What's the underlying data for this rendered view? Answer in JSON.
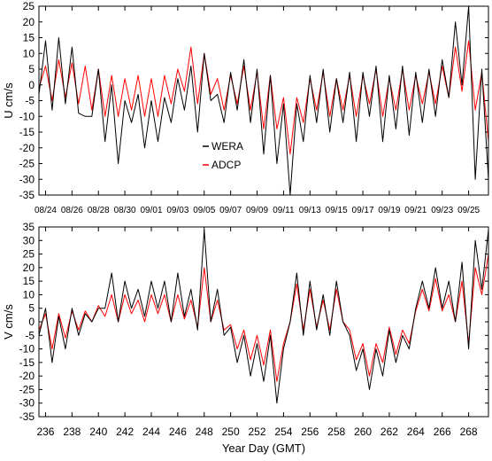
{
  "chart_data": [
    {
      "type": "line",
      "ylabel": "U cm/s",
      "xlim": [
        235.5,
        269.5
      ],
      "ylim": [
        -35,
        25
      ],
      "yticks": [
        25,
        20,
        15,
        10,
        5,
        0,
        -5,
        -10,
        -15,
        -20,
        -25,
        -30,
        -35
      ],
      "xticks": [
        {
          "x": 236,
          "label": "08/24"
        },
        {
          "x": 238,
          "label": "08/26"
        },
        {
          "x": 240,
          "label": "08/28"
        },
        {
          "x": 242,
          "label": "08/30"
        },
        {
          "x": 244,
          "label": "09/01"
        },
        {
          "x": 246,
          "label": "09/03"
        },
        {
          "x": 248,
          "label": "09/05"
        },
        {
          "x": 250,
          "label": "09/07"
        },
        {
          "x": 252,
          "label": "09/09"
        },
        {
          "x": 254,
          "label": "09/11"
        },
        {
          "x": 256,
          "label": "09/13"
        },
        {
          "x": 258,
          "label": "09/15"
        },
        {
          "x": 260,
          "label": "09/17"
        },
        {
          "x": 262,
          "label": "09/19"
        },
        {
          "x": 264,
          "label": "09/21"
        },
        {
          "x": 266,
          "label": "09/23"
        },
        {
          "x": 268,
          "label": "09/25"
        }
      ],
      "legend": {
        "placement": "center",
        "entries": [
          "WERA",
          "ADCP"
        ]
      },
      "series": [
        {
          "name": "WERA",
          "color": "#000000",
          "x": [
            235.5,
            236.0,
            236.5,
            237.0,
            237.5,
            238.0,
            238.5,
            239.0,
            239.5,
            240.0,
            240.5,
            241.0,
            241.5,
            242.0,
            242.5,
            243.0,
            243.5,
            244.0,
            244.5,
            245.0,
            245.5,
            246.0,
            246.5,
            247.0,
            247.5,
            248.0,
            248.5,
            249.0,
            249.5,
            250.0,
            250.5,
            251.0,
            251.5,
            252.0,
            252.5,
            253.0,
            253.5,
            254.0,
            254.5,
            255.0,
            255.5,
            256.0,
            256.5,
            257.0,
            257.5,
            258.0,
            258.5,
            259.0,
            259.5,
            260.0,
            260.5,
            261.0,
            261.5,
            262.0,
            262.5,
            263.0,
            263.5,
            264.0,
            264.5,
            265.0,
            265.5,
            266.0,
            266.5,
            267.0,
            267.5,
            268.0,
            268.5,
            269.0,
            269.5
          ],
          "y": [
            -3,
            14,
            -8,
            15,
            -6,
            12,
            -9,
            -10,
            -10,
            5,
            -18,
            0,
            -25,
            -5,
            -12,
            -3,
            -20,
            -5,
            -18,
            -4,
            -12,
            2,
            -8,
            6,
            -15,
            10,
            -5,
            -3,
            -12,
            4,
            -8,
            8,
            -12,
            5,
            -22,
            3,
            -25,
            -6,
            -35,
            -6,
            -18,
            3,
            -12,
            5,
            -15,
            2,
            -12,
            4,
            -18,
            4,
            -10,
            6,
            -18,
            3,
            -14,
            6,
            -16,
            4,
            -12,
            5,
            -10,
            8,
            -4,
            20,
            0,
            25,
            -30,
            5,
            -30
          ]
        },
        {
          "name": "ADCP",
          "color": "#ff0000",
          "x": [
            235.5,
            236.0,
            236.5,
            237.0,
            237.5,
            238.0,
            238.5,
            239.0,
            239.5,
            240.0,
            240.5,
            241.0,
            241.5,
            242.0,
            242.5,
            243.0,
            243.5,
            244.0,
            244.5,
            245.0,
            245.5,
            246.0,
            246.5,
            247.0,
            247.5,
            248.0,
            248.5,
            249.0,
            249.5,
            250.0,
            250.5,
            251.0,
            251.5,
            252.0,
            252.5,
            253.0,
            253.5,
            254.0,
            254.5,
            255.0,
            255.5,
            256.0,
            256.5,
            257.0,
            257.5,
            258.0,
            258.5,
            259.0,
            259.5,
            260.0,
            260.5,
            261.0,
            261.5,
            262.0,
            262.5,
            263.0,
            263.5,
            264.0,
            264.5,
            265.0,
            265.5,
            266.0,
            266.5,
            267.0,
            267.5,
            268.0,
            268.5,
            269.0,
            269.5
          ],
          "y": [
            -1,
            6,
            -5,
            8,
            -4,
            7,
            -6,
            6,
            -8,
            5,
            -10,
            3,
            -10,
            2,
            -8,
            3,
            -10,
            2,
            -10,
            3,
            -6,
            5,
            -2,
            12,
            -6,
            10,
            -3,
            2,
            -8,
            3,
            -6,
            6,
            -8,
            4,
            -14,
            3,
            -14,
            -4,
            -22,
            -4,
            -12,
            2,
            -8,
            4,
            -10,
            2,
            -8,
            3,
            -10,
            3,
            -6,
            5,
            -10,
            2,
            -8,
            5,
            -8,
            3,
            -6,
            4,
            -6,
            6,
            -4,
            12,
            -2,
            14,
            -8,
            4,
            -18
          ]
        }
      ]
    },
    {
      "type": "line",
      "ylabel": "V cm/s",
      "xlabel": "Year Day (GMT)",
      "xlim": [
        235.5,
        269.5
      ],
      "ylim": [
        -35,
        35
      ],
      "yticks": [
        35,
        30,
        25,
        20,
        15,
        10,
        5,
        0,
        -5,
        -10,
        -15,
        -20,
        -25,
        -30,
        -35
      ],
      "xticks": [
        {
          "x": 236,
          "label": "236"
        },
        {
          "x": 238,
          "label": "238"
        },
        {
          "x": 240,
          "label": "240"
        },
        {
          "x": 242,
          "label": "242"
        },
        {
          "x": 244,
          "label": "244"
        },
        {
          "x": 246,
          "label": "246"
        },
        {
          "x": 248,
          "label": "248"
        },
        {
          "x": 250,
          "label": "250"
        },
        {
          "x": 252,
          "label": "252"
        },
        {
          "x": 254,
          "label": "254"
        },
        {
          "x": 256,
          "label": "256"
        },
        {
          "x": 258,
          "label": "258"
        },
        {
          "x": 260,
          "label": "260"
        },
        {
          "x": 262,
          "label": "262"
        },
        {
          "x": 264,
          "label": "264"
        },
        {
          "x": 266,
          "label": "266"
        },
        {
          "x": 268,
          "label": "268"
        }
      ],
      "series": [
        {
          "name": "WERA",
          "color": "#000000",
          "x": [
            235.5,
            236.0,
            236.5,
            237.0,
            237.5,
            238.0,
            238.5,
            239.0,
            239.5,
            240.0,
            240.5,
            241.0,
            241.5,
            242.0,
            242.5,
            243.0,
            243.5,
            244.0,
            244.5,
            245.0,
            245.5,
            246.0,
            246.5,
            247.0,
            247.5,
            248.0,
            248.5,
            249.0,
            249.5,
            250.0,
            250.5,
            251.0,
            251.5,
            252.0,
            252.5,
            253.0,
            253.5,
            254.0,
            254.5,
            255.0,
            255.5,
            256.0,
            256.5,
            257.0,
            257.5,
            258.0,
            258.5,
            259.0,
            259.5,
            260.0,
            260.5,
            261.0,
            261.5,
            262.0,
            262.5,
            263.0,
            263.5,
            264.0,
            264.5,
            265.0,
            265.5,
            266.0,
            266.5,
            267.0,
            267.5,
            268.0,
            268.5,
            269.0,
            269.5
          ],
          "y": [
            -5,
            5,
            -15,
            2,
            -10,
            5,
            -5,
            3,
            0,
            5,
            5,
            18,
            0,
            15,
            5,
            12,
            2,
            15,
            5,
            15,
            0,
            18,
            2,
            12,
            -3,
            34,
            0,
            12,
            -5,
            -2,
            -15,
            -5,
            -20,
            -8,
            -22,
            -5,
            -30,
            -10,
            0,
            18,
            -5,
            15,
            -3,
            10,
            -5,
            15,
            0,
            -5,
            -18,
            -10,
            -25,
            -10,
            -20,
            -3,
            -15,
            -5,
            -10,
            5,
            15,
            5,
            20,
            5,
            15,
            0,
            22,
            -10,
            30,
            12,
            34
          ]
        },
        {
          "name": "ADCP",
          "color": "#ff0000",
          "x": [
            235.5,
            236.0,
            236.5,
            237.0,
            237.5,
            238.0,
            238.5,
            239.0,
            239.5,
            240.0,
            240.5,
            241.0,
            241.5,
            242.0,
            242.5,
            243.0,
            243.5,
            244.0,
            244.5,
            245.0,
            245.5,
            246.0,
            246.5,
            247.0,
            247.5,
            248.0,
            248.5,
            249.0,
            249.5,
            250.0,
            250.5,
            251.0,
            251.5,
            252.0,
            252.5,
            253.0,
            253.5,
            254.0,
            254.5,
            255.0,
            255.5,
            256.0,
            256.5,
            257.0,
            257.5,
            258.0,
            258.5,
            259.0,
            259.5,
            260.0,
            260.5,
            261.0,
            261.5,
            262.0,
            262.5,
            263.0,
            263.5,
            264.0,
            264.5,
            265.0,
            265.5,
            266.0,
            266.5,
            267.0,
            267.5,
            268.0,
            268.5,
            269.0,
            269.5
          ],
          "y": [
            -3,
            3,
            -10,
            3,
            -6,
            4,
            -3,
            4,
            0,
            6,
            2,
            10,
            0,
            10,
            3,
            8,
            0,
            10,
            3,
            10,
            0,
            10,
            1,
            8,
            -2,
            20,
            0,
            8,
            -3,
            -1,
            -10,
            -3,
            -14,
            -5,
            -16,
            -3,
            -22,
            -8,
            0,
            14,
            -3,
            12,
            -2,
            8,
            -3,
            12,
            0,
            -3,
            -14,
            -8,
            -20,
            -8,
            -15,
            -2,
            -12,
            -3,
            -8,
            4,
            12,
            4,
            16,
            4,
            10,
            0,
            15,
            -8,
            20,
            10,
            25
          ]
        }
      ]
    }
  ]
}
